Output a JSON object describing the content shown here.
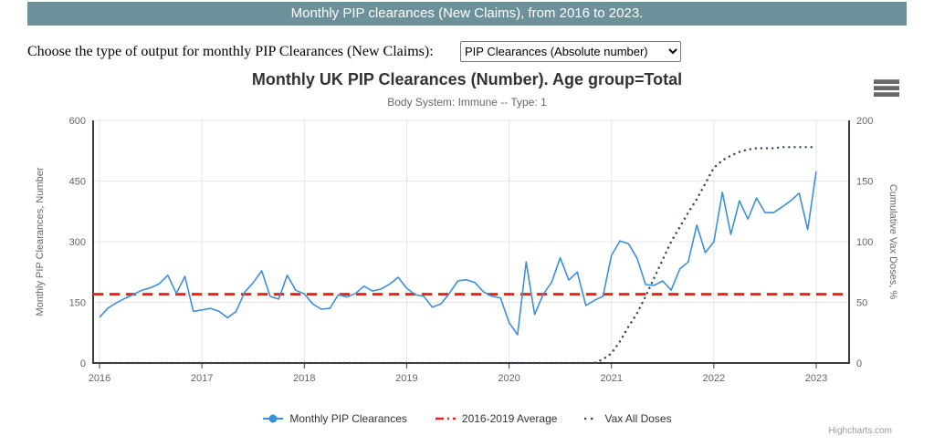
{
  "banner": {
    "text": "Monthly PIP clearances (New Claims), from 2016 to 2023.",
    "bg_color": "#6d919a"
  },
  "controls": {
    "label": "Choose the type of output for monthly PIP Clearances (New Claims):",
    "select_value": "PIP Clearances (Absolute number)"
  },
  "chart": {
    "title": "Monthly UK PIP Clearances (Number). Age group=Total",
    "subtitle": "Body System: Immune -- Type: 1",
    "credits": "Highcharts.com",
    "menu_icon": "hamburger-export-menu"
  },
  "chart_data": {
    "type": "line",
    "title": "Monthly UK PIP Clearances (Number). Age group=Total",
    "subtitle": "Body System: Immune -- Type: 1",
    "x_monthly_start": "2016-01",
    "x_monthly_end": "2023-01",
    "xaxis": {
      "categories": [
        "2016",
        "2017",
        "2018",
        "2019",
        "2020",
        "2021",
        "2022",
        "2023"
      ]
    },
    "yaxis_left": {
      "title": "Monthly PIP Clearances, Number",
      "min": 0,
      "max": 600,
      "ticks": [
        0,
        150,
        300,
        450,
        600
      ]
    },
    "yaxis_right": {
      "title": "Cumulative Vax Doses, %",
      "min": 0,
      "max": 200,
      "ticks": [
        0,
        50,
        100,
        150,
        200
      ]
    },
    "grid": true,
    "legend_position": "bottom",
    "colors": {
      "pip_line": "#3d8fd8",
      "average_line": "#ee2020",
      "vax_line": "#36455d",
      "gridline": "#e6e6e6",
      "frame": "#3b3b3b",
      "axis_label": "#666666"
    },
    "series": [
      {
        "name": "Monthly PIP Clearances",
        "style": "solid",
        "axis": "left",
        "color": "#3d8fd8",
        "values": [
          113,
          136,
          149,
          160,
          170,
          180,
          186,
          196,
          217,
          172,
          214,
          128,
          131,
          135,
          128,
          112,
          127,
          175,
          198,
          228,
          165,
          158,
          217,
          180,
          171,
          146,
          133,
          135,
          169,
          163,
          172,
          190,
          178,
          183,
          195,
          212,
          185,
          169,
          165,
          138,
          146,
          172,
          203,
          206,
          199,
          176,
          165,
          161,
          100,
          70,
          250,
          120,
          170,
          200,
          260,
          205,
          225,
          142,
          155,
          165,
          266,
          302,
          295,
          259,
          194,
          192,
          203,
          180,
          232,
          250,
          341,
          273,
          300,
          422,
          318,
          401,
          356,
          408,
          372,
          372,
          386,
          401,
          420,
          330,
          474
        ]
      },
      {
        "name": "2016-2019 Average",
        "style": "dashed",
        "axis": "left",
        "color": "#ee2020",
        "constant_value": 170
      },
      {
        "name": "Vax All Doses",
        "style": "dotted",
        "axis": "right",
        "color": "#36455d",
        "values": [
          0,
          0,
          0,
          0,
          0,
          0,
          0,
          0,
          0,
          0,
          0,
          0,
          0,
          0,
          0,
          0,
          0,
          0,
          0,
          0,
          0,
          0,
          0,
          0,
          0,
          0,
          0,
          0,
          0,
          0,
          0,
          0,
          0,
          0,
          0,
          0,
          0,
          0,
          0,
          0,
          0,
          0,
          0,
          0,
          0,
          0,
          0,
          0,
          0,
          0,
          0,
          0,
          0,
          0,
          0,
          0,
          0,
          0,
          0,
          3,
          8,
          18,
          30,
          41,
          55,
          70,
          85,
          100,
          112,
          124,
          135,
          148,
          161,
          167,
          171,
          174,
          176,
          177,
          177,
          177,
          178,
          178,
          178,
          178,
          178
        ]
      }
    ],
    "legend": [
      {
        "label": "Monthly PIP Clearances",
        "style": "solid",
        "color": "#3d8fd8"
      },
      {
        "label": "2016-2019 Average",
        "style": "dashed",
        "color": "#ee2020"
      },
      {
        "label": "Vax All Doses",
        "style": "dotted",
        "color": "#36455d"
      }
    ]
  }
}
